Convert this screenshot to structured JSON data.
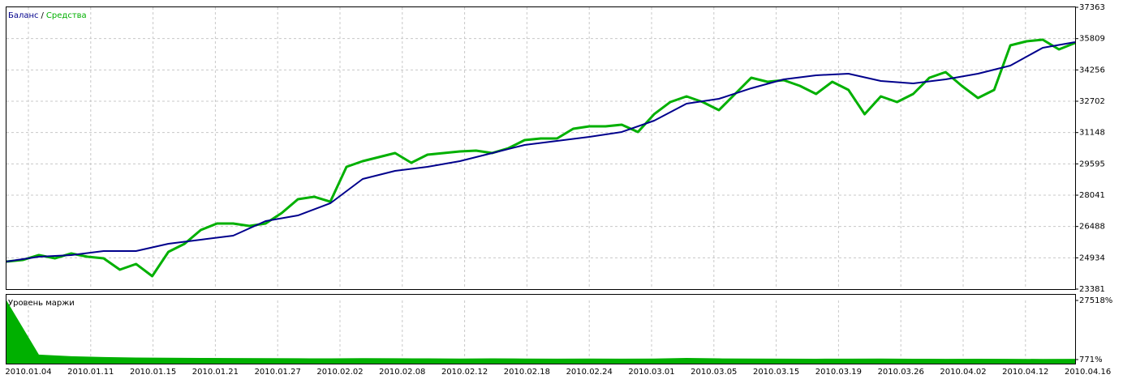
{
  "chart_data": [
    {
      "type": "line",
      "legend_separator": "/",
      "ylim": [
        23381,
        37363
      ],
      "yticks": [
        23381,
        24934,
        26488,
        28041,
        29595,
        31148,
        32702,
        34256,
        35809,
        37363
      ],
      "grid": true,
      "x_labels": [
        "2010.01.04",
        "2010.01.11",
        "2010.01.15",
        "2010.01.21",
        "2010.01.27",
        "2010.02.02",
        "2010.02.08",
        "2010.02.12",
        "2010.02.18",
        "2010.02.24",
        "2010.03.01",
        "2010.03.05",
        "2010.03.15",
        "2010.03.19",
        "2010.03.26",
        "2010.04.02",
        "2010.04.12",
        "2010.04.16"
      ],
      "series": [
        {
          "name": "Средства",
          "color": "#00b000",
          "values": [
            24747,
            24827,
            25069,
            24908,
            25149,
            24988,
            24908,
            24345,
            24627,
            24024,
            25229,
            25631,
            26314,
            26636,
            26636,
            26515,
            26636,
            27158,
            27841,
            27962,
            27720,
            29448,
            29729,
            29930,
            30131,
            29649,
            30051,
            30131,
            30212,
            30252,
            30131,
            30372,
            30774,
            30854,
            30854,
            31337,
            31457,
            31457,
            31538,
            31176,
            32060,
            32663,
            32944,
            32663,
            32261,
            33064,
            33868,
            33667,
            33747,
            33466,
            33064,
            33667,
            33265,
            32060,
            32944,
            32663,
            33064,
            33868,
            34149,
            33466,
            32863,
            33265,
            35475,
            35676,
            35756,
            35274,
            35596
          ]
        },
        {
          "name": "Баланс",
          "color": "#00008c",
          "values": [
            24747,
            24988,
            25069,
            25269,
            25269,
            25631,
            25832,
            26033,
            26756,
            27037,
            27640,
            28845,
            29247,
            29448,
            29729,
            30131,
            30533,
            30734,
            30935,
            31176,
            31738,
            32582,
            32823,
            33346,
            33788,
            33989,
            34069,
            33707,
            33587,
            33788,
            34069,
            34471,
            35355,
            35636
          ]
        }
      ]
    },
    {
      "type": "area",
      "title": "Уровень маржи",
      "ylim": [
        771,
        27518
      ],
      "yticks": [
        {
          "value": 771,
          "label": "771%"
        },
        {
          "value": 27518,
          "label": "27518%"
        }
      ],
      "color": "#00b000",
      "values": [
        27518,
        3000,
        2300,
        1900,
        1700,
        1600,
        1500,
        1450,
        1400,
        1350,
        1300,
        1400,
        1350,
        1300,
        1250,
        1300,
        1250,
        1200,
        1250,
        1200,
        1250,
        1500,
        1300,
        1250,
        1200,
        1150,
        1200,
        1250,
        1150,
        1100,
        1150,
        1100,
        1050,
        1100
      ]
    }
  ]
}
